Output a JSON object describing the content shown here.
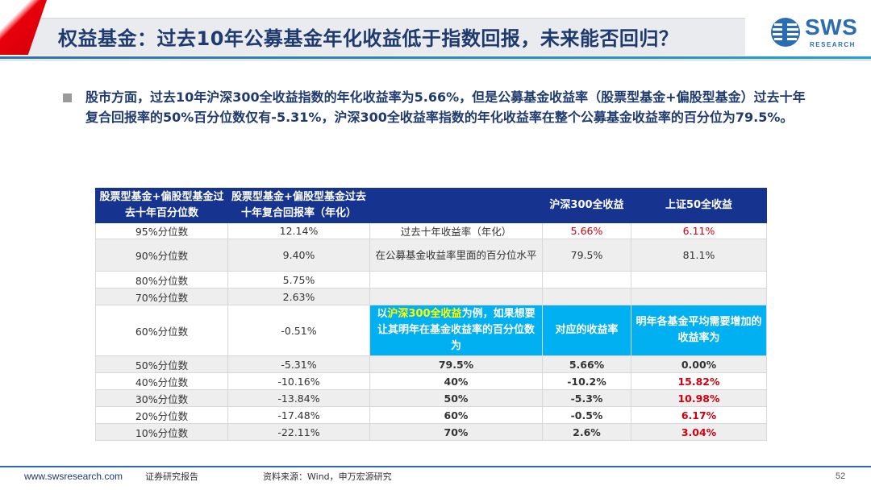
{
  "header": {
    "title": "权益基金：过去10年公募基金年化收益低于指数回报，未来能否回归？",
    "logo_text": "SWS",
    "logo_sub": "RESEARCH"
  },
  "bullet": {
    "text": "股市方面，过去10年沪深300全收益指数的年化收益率为5.66%，但是公募基金收益率（股票型基金+偏股型基金）过去十年复合回报率的50%百分位数仅有-5.31%，沪深300全收益率指数的年化收益率在整个公募基金收益率的百分位为79.5%。"
  },
  "table": {
    "headers": {
      "col1": "股票型基金+偏股型基金过去十年百分位数",
      "col2": "股票型基金+偏股型基金过去十年复合回报率（年化）",
      "col3": "",
      "col4": "沪深300全收益",
      "col5": "上证50全收益"
    },
    "percentile_rows": [
      {
        "pct": "95%分位数",
        "ret": "12.14%"
      },
      {
        "pct": "90%分位数",
        "ret": "9.40%"
      },
      {
        "pct": "80%分位数",
        "ret": "5.75%"
      },
      {
        "pct": "70%分位数",
        "ret": "2.63%"
      },
      {
        "pct": "60%分位数",
        "ret": "-0.51%"
      },
      {
        "pct": "50%分位数",
        "ret": "-5.31%"
      },
      {
        "pct": "40%分位数",
        "ret": "-10.16%"
      },
      {
        "pct": "30%分位数",
        "ret": "-13.84%"
      },
      {
        "pct": "20%分位数",
        "ret": "-17.48%"
      },
      {
        "pct": "10%分位数",
        "ret": "-22.11%"
      }
    ],
    "index_rows": [
      {
        "label": "过去十年收益率（年化）",
        "hs300": "5.66%",
        "sz50": "6.11%"
      },
      {
        "label": "在公募基金收益率里面的百分位水平",
        "hs300": "79.5%",
        "sz50": "81.1%"
      }
    ],
    "sub_header": {
      "col3_pre": "以",
      "col3_hl": "沪深300全收益",
      "col3_post": "为例，如果想要让其明年在基金收益率的百分位数为",
      "col4": "对应的收益率",
      "col5": "明年各基金平均需要增加的收益率为"
    },
    "scenario_rows": [
      {
        "target": "79.5%",
        "ret": "5.66%",
        "add": "0.00%"
      },
      {
        "target": "40%",
        "ret": "-10.2%",
        "add": "15.82%"
      },
      {
        "target": "50%",
        "ret": "-5.3%",
        "add": "10.98%"
      },
      {
        "target": "60%",
        "ret": "-0.5%",
        "add": "6.17%"
      },
      {
        "target": "70%",
        "ret": "2.6%",
        "add": "3.04%"
      }
    ]
  },
  "footer": {
    "url": "www.swsresearch.com",
    "doc_type": "证券研究报告",
    "source": "资料来源：Wind，申万宏源研究",
    "page": "52"
  },
  "colors": {
    "title_blue": "#1e3a6e",
    "table_header": "#16338f",
    "cyan_header": "#00b0f0",
    "accent_red": "#d2000e"
  }
}
